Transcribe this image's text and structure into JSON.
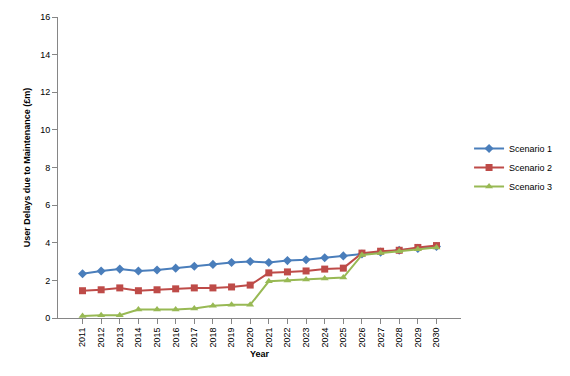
{
  "chart_data": {
    "type": "line",
    "x_label": "Year",
    "y_label": "User Delays due to Maintenance (£m)",
    "categories": [
      "2011",
      "2012",
      "2013",
      "2014",
      "2015",
      "2016",
      "2017",
      "2018",
      "2019",
      "2020",
      "2021",
      "2022",
      "2023",
      "2024",
      "2025",
      "2026",
      "2027",
      "2028",
      "2029",
      "2030"
    ],
    "series": [
      {
        "name": "Scenario 1",
        "color": "#4a7ebb",
        "marker": "diamond",
        "values": [
          2.35,
          2.5,
          2.6,
          2.5,
          2.55,
          2.65,
          2.75,
          2.85,
          2.95,
          3.0,
          2.95,
          3.05,
          3.1,
          3.2,
          3.3,
          3.4,
          3.5,
          3.6,
          3.7,
          3.8
        ]
      },
      {
        "name": "Scenario 2",
        "color": "#be4b48",
        "marker": "square",
        "values": [
          1.45,
          1.5,
          1.6,
          1.45,
          1.5,
          1.55,
          1.6,
          1.6,
          1.65,
          1.75,
          2.4,
          2.45,
          2.5,
          2.6,
          2.65,
          3.45,
          3.55,
          3.6,
          3.75,
          3.85
        ]
      },
      {
        "name": "Scenario 3",
        "color": "#98b954",
        "marker": "triangle-up",
        "values": [
          0.1,
          0.15,
          0.15,
          0.45,
          0.45,
          0.45,
          0.5,
          0.65,
          0.7,
          0.7,
          1.95,
          2.0,
          2.05,
          2.1,
          2.15,
          3.35,
          3.45,
          3.55,
          3.65,
          3.75
        ]
      }
    ],
    "ylim": [
      0,
      16
    ],
    "yticks": [
      0,
      2,
      4,
      6,
      8,
      10,
      12,
      14,
      16
    ],
    "grid": false,
    "legend": "right"
  }
}
